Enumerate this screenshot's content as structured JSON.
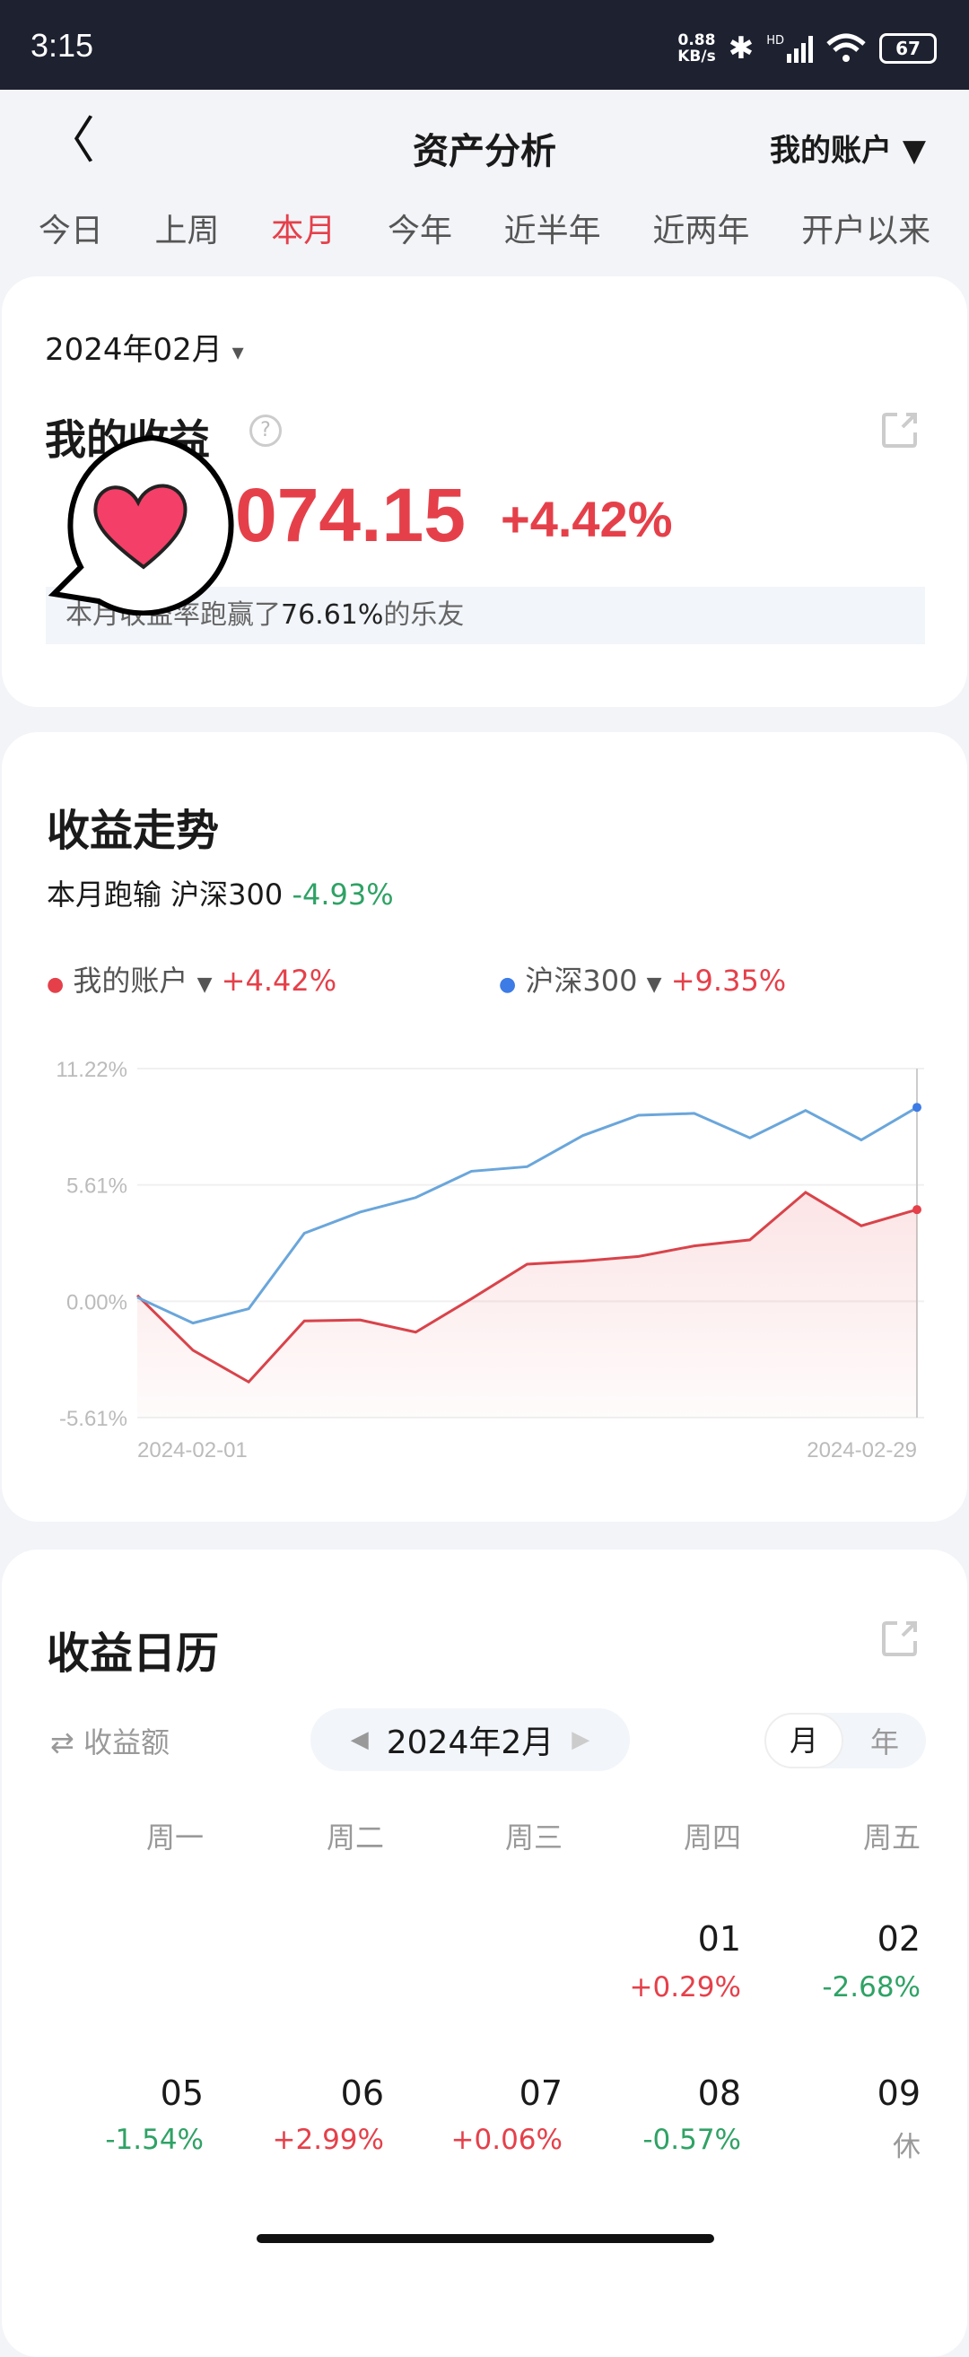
{
  "status_bar": {
    "time": "3:15",
    "net_speed_value": "0.88",
    "net_speed_unit": "KB/s",
    "signal_label": "HD",
    "battery": "67"
  },
  "header": {
    "title": "资产分析",
    "account_selector": "我的账户 ▼"
  },
  "tabs": [
    {
      "label": "今日"
    },
    {
      "label": "上周"
    },
    {
      "label": "本月",
      "active": true
    },
    {
      "label": "今年"
    },
    {
      "label": "近半年"
    },
    {
      "label": "近两年"
    },
    {
      "label": "开户以来"
    }
  ],
  "summary": {
    "period": "2024年02月",
    "period_caret": "▾",
    "title": "我的收益",
    "profit_visible": "074.15",
    "profit_pct": "+4.42%",
    "rank_prefix": "本月收益率跑赢了",
    "rank_value": "76.61%",
    "rank_suffix": "的乐友"
  },
  "trend": {
    "title": "收益走势",
    "compare_prefix": "本月跑输 沪深300",
    "compare_value": "-4.93%"
  },
  "colors": {
    "red": "#e5404a",
    "blue": "#3d7be6",
    "line_blue": "#6aa6db",
    "line_red": "#d9434a",
    "green": "#2fa265"
  },
  "chart_data": {
    "type": "line",
    "legend": [
      {
        "name": "我的账户",
        "value": "+4.42%"
      },
      {
        "name": "沪深300",
        "value": "+9.35%"
      }
    ],
    "x": [
      "2024-02-01",
      "2024-02-02",
      "2024-02-05",
      "2024-02-06",
      "2024-02-07",
      "2024-02-08",
      "2024-02-19",
      "2024-02-20",
      "2024-02-21",
      "2024-02-22",
      "2024-02-23",
      "2024-02-26",
      "2024-02-27",
      "2024-02-28",
      "2024-02-29"
    ],
    "x_tick_labels": [
      "2024-02-01",
      "2024-02-29"
    ],
    "y_tick_labels": [
      "11.22%",
      "5.61%",
      "0.00%",
      "-5.61%"
    ],
    "ylim": [
      -5.61,
      11.22
    ],
    "grid": true,
    "series": [
      {
        "name": "我的账户",
        "values": [
          0.29,
          -2.36,
          -3.89,
          -0.95,
          -0.9,
          -1.49,
          0.12,
          1.79,
          1.94,
          2.16,
          2.67,
          2.96,
          5.25,
          3.64,
          4.42
        ],
        "area": true
      },
      {
        "name": "沪深300",
        "values": [
          0.19,
          -1.05,
          -0.36,
          3.28,
          4.3,
          5.0,
          6.27,
          6.49,
          7.99,
          8.97,
          9.06,
          7.88,
          9.2,
          7.78,
          9.35
        ]
      }
    ]
  },
  "calendar": {
    "title": "收益日历",
    "mode_toggle": "⇄ 收益额",
    "month": "2024年2月",
    "view_month": "月",
    "view_year": "年",
    "weekdays": [
      "周一",
      "周二",
      "周三",
      "周四",
      "周五"
    ],
    "rows": [
      [
        null,
        null,
        null,
        {
          "day": "01",
          "value": "+0.29%",
          "tone": "red"
        },
        {
          "day": "02",
          "value": "-2.68%",
          "tone": "green"
        }
      ],
      [
        {
          "day": "05",
          "value": "-1.54%",
          "tone": "green"
        },
        {
          "day": "06",
          "value": "+2.99%",
          "tone": "red"
        },
        {
          "day": "07",
          "value": "+0.06%",
          "tone": "red"
        },
        {
          "day": "08",
          "value": "-0.57%",
          "tone": "green"
        },
        {
          "day": "09",
          "value": "休",
          "tone": "gray"
        }
      ]
    ]
  }
}
